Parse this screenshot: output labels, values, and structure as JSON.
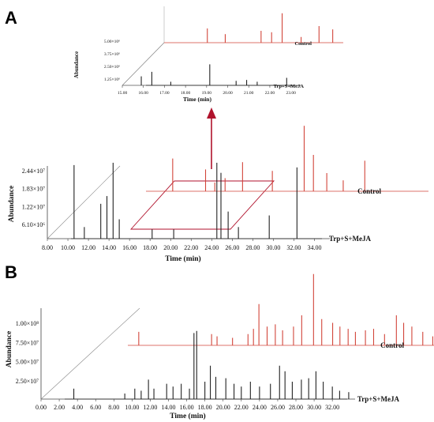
{
  "figure": {
    "panel_a_label": "A",
    "panel_b_label": "B",
    "arrow_color": "#b0122c",
    "control_color": "#d2453a",
    "treatment_color": "#222222"
  },
  "chart_data": [
    {
      "id": "inset",
      "type": "line",
      "xlabel": "Time (min)",
      "ylabel": "Abundance",
      "xticks": [
        "15.00",
        "16.00",
        "17.00",
        "18.00",
        "19.00",
        "20.00",
        "21.00",
        "22.00",
        "23.00"
      ],
      "yticks": [
        "1.25×10⁶",
        "2.50×10⁶",
        "3.75×10⁶",
        "5.00×10⁶"
      ],
      "xlim": [
        15.0,
        23.5
      ],
      "series": [
        {
          "name": "Control",
          "peaks": [
            [
              17.05,
              0.3
            ],
            [
              17.9,
              0.18
            ],
            [
              19.6,
              0.25
            ],
            [
              20.1,
              0.22
            ],
            [
              20.6,
              0.62
            ],
            [
              21.5,
              0.12
            ],
            [
              22.35,
              0.35
            ],
            [
              23.0,
              0.28
            ]
          ]
        },
        {
          "name": "Trp+S+MeJA",
          "peaks": [
            [
              15.9,
              0.3
            ],
            [
              16.4,
              0.45
            ],
            [
              17.3,
              0.12
            ],
            [
              19.15,
              0.7
            ],
            [
              20.4,
              0.15
            ],
            [
              20.9,
              0.18
            ],
            [
              21.4,
              0.12
            ],
            [
              22.8,
              0.25
            ]
          ]
        }
      ]
    },
    {
      "id": "main_a",
      "type": "line",
      "xlabel": "Time (min)",
      "ylabel": "Abundance",
      "xticks": [
        "8.00",
        "10.00",
        "12.00",
        "14.00",
        "16.00",
        "18.00",
        "20.00",
        "22.00",
        "24.00",
        "26.00",
        "28.00",
        "30.00",
        "32.00",
        "34.00"
      ],
      "yticks": [
        "6.10×10⁶",
        "1.22×10⁷",
        "1.83×10⁷",
        "2.44×10⁷"
      ],
      "xlim": [
        8.0,
        35.5
      ],
      "series": [
        {
          "name": "Control",
          "peaks": [
            [
              10.6,
              0.45
            ],
            [
              13.8,
              0.3
            ],
            [
              14.7,
              0.12
            ],
            [
              15.7,
              0.18
            ],
            [
              17.4,
              0.4
            ],
            [
              20.3,
              0.28
            ],
            [
              23.4,
              0.9
            ],
            [
              24.3,
              0.5
            ],
            [
              25.6,
              0.25
            ],
            [
              27.2,
              0.15
            ],
            [
              29.3,
              0.42
            ]
          ]
        },
        {
          "name": "Trp+S+MeJA",
          "peaks": [
            [
              10.6,
              0.95
            ],
            [
              11.6,
              0.15
            ],
            [
              13.2,
              0.45
            ],
            [
              13.8,
              0.55
            ],
            [
              14.4,
              0.98
            ],
            [
              15.0,
              0.25
            ],
            [
              18.2,
              0.12
            ],
            [
              20.3,
              0.12
            ],
            [
              24.5,
              0.98
            ],
            [
              24.9,
              0.85
            ],
            [
              25.6,
              0.35
            ],
            [
              26.6,
              0.15
            ],
            [
              29.6,
              0.3
            ],
            [
              32.3,
              0.92
            ]
          ]
        }
      ]
    },
    {
      "id": "panel_b",
      "type": "line",
      "xlabel": "Time (min)",
      "ylabel": "Abundance",
      "xticks": [
        "0.00",
        "2.00",
        "4.00",
        "6.00",
        "8.00",
        "10.00",
        "12.00",
        "14.00",
        "16.00",
        "18.00",
        "20.00",
        "22.00",
        "24.00",
        "26.00",
        "28.00",
        "30.00",
        "32.00"
      ],
      "yticks": [
        "2.50×10⁷",
        "5.00×10⁷",
        "7.50×10⁷",
        "1.00×10⁸"
      ],
      "xlim": [
        0.0,
        34.5
      ],
      "series": [
        {
          "name": "Control",
          "peaks": [
            [
              1.2,
              0.18
            ],
            [
              9.2,
              0.15
            ],
            [
              9.8,
              0.12
            ],
            [
              11.5,
              0.1
            ],
            [
              13.2,
              0.15
            ],
            [
              13.8,
              0.22
            ],
            [
              14.4,
              0.55
            ],
            [
              15.3,
              0.25
            ],
            [
              16.2,
              0.28
            ],
            [
              17.0,
              0.2
            ],
            [
              18.2,
              0.25
            ],
            [
              19.1,
              0.4
            ],
            [
              20.4,
              0.95
            ],
            [
              21.3,
              0.35
            ],
            [
              22.5,
              0.3
            ],
            [
              23.3,
              0.25
            ],
            [
              24.2,
              0.22
            ],
            [
              25.0,
              0.18
            ],
            [
              26.1,
              0.2
            ],
            [
              27.0,
              0.22
            ],
            [
              28.2,
              0.15
            ],
            [
              29.5,
              0.4
            ],
            [
              30.3,
              0.3
            ],
            [
              31.2,
              0.25
            ],
            [
              32.4,
              0.18
            ],
            [
              33.5,
              0.12
            ]
          ]
        },
        {
          "name": "Trp+S+MeJA",
          "peaks": [
            [
              3.6,
              0.15
            ],
            [
              9.2,
              0.08
            ],
            [
              10.3,
              0.15
            ],
            [
              11.0,
              0.12
            ],
            [
              11.8,
              0.28
            ],
            [
              12.4,
              0.15
            ],
            [
              13.8,
              0.22
            ],
            [
              14.5,
              0.18
            ],
            [
              15.4,
              0.22
            ],
            [
              16.3,
              0.15
            ],
            [
              16.8,
              0.95
            ],
            [
              17.1,
              0.98
            ],
            [
              18.0,
              0.25
            ],
            [
              18.6,
              0.48
            ],
            [
              19.2,
              0.32
            ],
            [
              20.3,
              0.3
            ],
            [
              21.2,
              0.22
            ],
            [
              22.0,
              0.18
            ],
            [
              23.0,
              0.25
            ],
            [
              24.0,
              0.18
            ],
            [
              25.2,
              0.22
            ],
            [
              26.2,
              0.48
            ],
            [
              26.8,
              0.4
            ],
            [
              27.6,
              0.25
            ],
            [
              28.6,
              0.28
            ],
            [
              29.4,
              0.3
            ],
            [
              30.2,
              0.4
            ],
            [
              31.0,
              0.25
            ],
            [
              32.0,
              0.18
            ],
            [
              32.8,
              0.12
            ],
            [
              33.8,
              0.1
            ]
          ]
        }
      ]
    }
  ]
}
